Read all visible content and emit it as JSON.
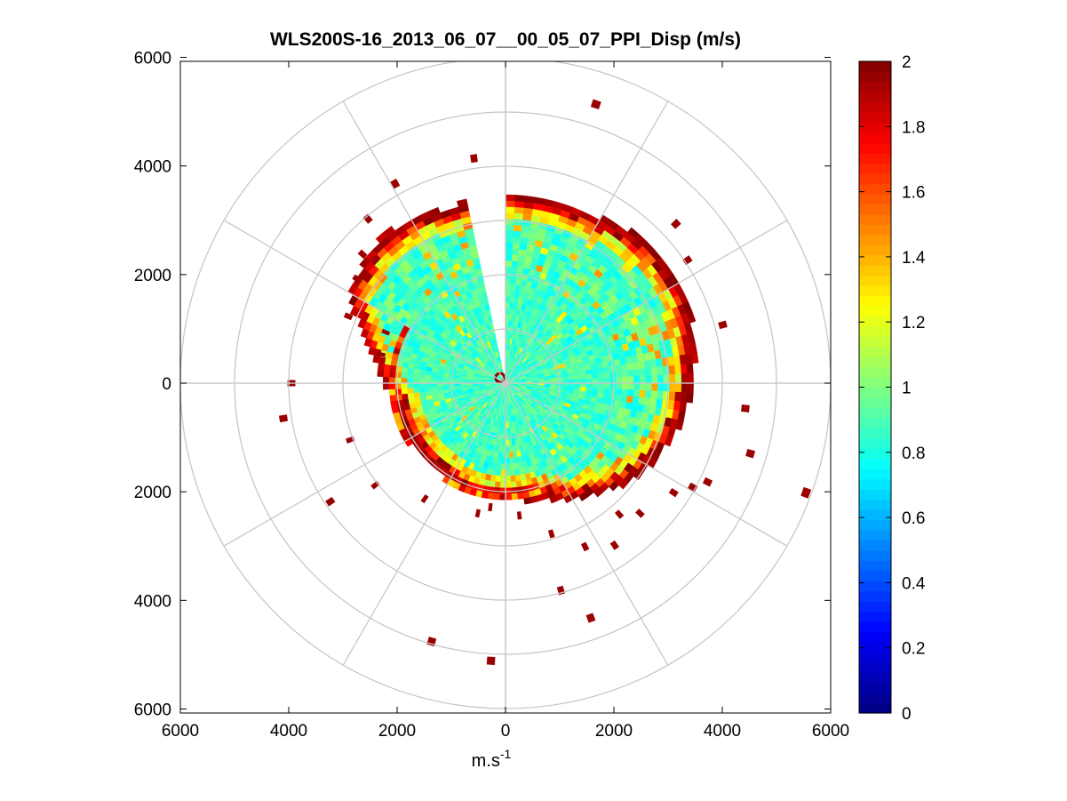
{
  "chart_data": {
    "type": "polar-heatmap",
    "title": "WLS200S-16_2013_06_07__00_05_07_PPI_Disp (m/s)",
    "xlabel_base": "m.s",
    "xlabel_sup": "-1",
    "ylabel": "",
    "xlim": [
      -6000,
      6000
    ],
    "ylim": [
      -6000,
      6000
    ],
    "x_ticks": [
      -6000,
      -4000,
      -2000,
      0,
      2000,
      4000,
      6000
    ],
    "y_ticks": [
      -6000,
      -4000,
      -2000,
      0,
      2000,
      4000,
      6000
    ],
    "x_tick_labels": [
      "6000",
      "4000",
      "2000",
      "0",
      "2000",
      "4000",
      "6000"
    ],
    "y_tick_labels": [
      "6000",
      "4000",
      "2000",
      "0",
      "2000",
      "4000",
      "6000"
    ],
    "polar_grid_radii": [
      1000,
      2000,
      3000,
      4000,
      5000,
      6000
    ],
    "polar_grid_spoke_step_deg": 30,
    "colorbar": {
      "colormap": "jet",
      "min": 0,
      "max": 2,
      "ticks": [
        0,
        0.2,
        0.4,
        0.6,
        0.8,
        1,
        1.2,
        1.4,
        1.6,
        1.8,
        2
      ],
      "tick_labels": [
        "0",
        "0.2",
        "0.4",
        "0.6",
        "0.8",
        "1",
        "1.2",
        "1.4",
        "1.6",
        "1.8",
        "2"
      ]
    },
    "scan": {
      "missing_sector_deg": [
        348,
        358
      ],
      "dense_range_m": 2050,
      "ring_cell_m": 110,
      "sector_outer_edge_m": [
        {
          "az": 0,
          "r": 3400
        },
        {
          "az": 20,
          "r": 3400
        },
        {
          "az": 40,
          "r": 3600
        },
        {
          "az": 60,
          "r": 3650
        },
        {
          "az": 80,
          "r": 3500
        },
        {
          "az": 100,
          "r": 3300
        },
        {
          "az": 120,
          "r": 3000
        },
        {
          "az": 140,
          "r": 2600
        },
        {
          "az": 160,
          "r": 2200
        },
        {
          "az": 180,
          "r": 2080
        },
        {
          "az": 200,
          "r": 2100
        },
        {
          "az": 220,
          "r": 2000
        },
        {
          "az": 240,
          "r": 2050
        },
        {
          "az": 260,
          "r": 2050
        },
        {
          "az": 280,
          "r": 2450
        },
        {
          "az": 300,
          "r": 3300
        },
        {
          "az": 320,
          "r": 3500
        },
        {
          "az": 340,
          "r": 3350
        },
        {
          "az": 360,
          "r": 3400
        }
      ],
      "outlier_cells": [
        {
          "az": 18,
          "r": 5400
        },
        {
          "az": 352,
          "r": 4180
        },
        {
          "az": 331,
          "r": 4200
        },
        {
          "az": 320,
          "r": 3950
        },
        {
          "az": 312,
          "r": 3550
        },
        {
          "az": 305,
          "r": 3350
        },
        {
          "az": 293,
          "r": 3150
        },
        {
          "az": 47,
          "r": 4300
        },
        {
          "az": 56,
          "r": 4050
        },
        {
          "az": 75,
          "r": 4150
        },
        {
          "az": 96,
          "r": 4450
        },
        {
          "az": 106,
          "r": 4700
        },
        {
          "az": 110,
          "r": 5900
        },
        {
          "az": 116,
          "r": 4150
        },
        {
          "az": 119,
          "r": 3950
        },
        {
          "az": 123,
          "r": 3700
        },
        {
          "az": 134,
          "r": 3450
        },
        {
          "az": 139,
          "r": 3200
        },
        {
          "az": 146,
          "r": 3600
        },
        {
          "az": 154,
          "r": 3350
        },
        {
          "az": 160,
          "r": 4600
        },
        {
          "az": 165,
          "r": 3950
        },
        {
          "az": 163,
          "r": 2900
        },
        {
          "az": 174,
          "r": 2450
        },
        {
          "az": 187,
          "r": 2300
        },
        {
          "az": 192,
          "r": 2450
        },
        {
          "az": 183,
          "r": 5120
        },
        {
          "az": 196,
          "r": 4950
        },
        {
          "az": 215,
          "r": 2600
        },
        {
          "az": 232,
          "r": 3050
        },
        {
          "az": 236,
          "r": 3900
        },
        {
          "az": 250,
          "r": 3050
        },
        {
          "az": 261,
          "r": 4150
        },
        {
          "az": 270,
          "r": 3950
        },
        {
          "az": 283,
          "r": 2350
        },
        {
          "az": 293,
          "r": 2400
        }
      ]
    }
  }
}
